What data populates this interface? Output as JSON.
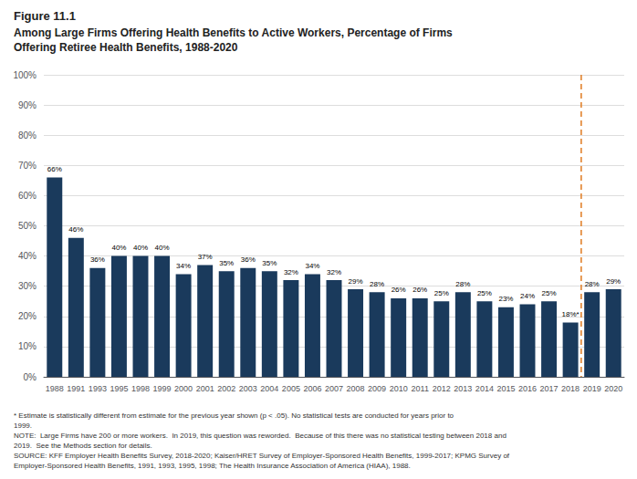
{
  "chart_data": {
    "type": "bar",
    "title": "Figure 11.1",
    "subtitle": [
      "Among Large Firms Offering Health Benefits to Active Workers, Percentage of Firms",
      "Offering Retiree Health Benefits, 1988-2020"
    ],
    "categories": [
      "1988",
      "1991",
      "1993",
      "1995",
      "1998",
      "1999",
      "2000",
      "2001",
      "2002",
      "2003",
      "2004",
      "2005",
      "2006",
      "2007",
      "2008",
      "2009",
      "2010",
      "2011",
      "2012",
      "2013",
      "2014",
      "2015",
      "2016",
      "2017",
      "2018",
      "2019",
      "2020"
    ],
    "values": [
      66,
      46,
      36,
      40,
      40,
      40,
      34,
      37,
      35,
      36,
      35,
      32,
      34,
      32,
      29,
      28,
      26,
      26,
      25,
      28,
      25,
      23,
      24,
      25,
      18,
      28,
      29
    ],
    "value_labels": [
      "66%",
      "46%",
      "36%",
      "40%",
      "40%",
      "40%",
      "34%",
      "37%",
      "35%",
      "36%",
      "35%",
      "32%",
      "34%",
      "32%",
      "29%",
      "28%",
      "26%",
      "26%",
      "25%",
      "28%",
      "25%",
      "23%",
      "24%",
      "25%",
      "18%*",
      "28%",
      "29%"
    ],
    "data_labels": true,
    "color": "#1a3a5c",
    "ylim": [
      0,
      100
    ],
    "yticks": [
      {
        "value": 0,
        "label": "0%"
      },
      {
        "value": 10,
        "label": "10%"
      },
      {
        "value": 20,
        "label": "20%"
      },
      {
        "value": 30,
        "label": "30%"
      },
      {
        "value": 40,
        "label": "40%"
      },
      {
        "value": 50,
        "label": "50%"
      },
      {
        "value": 60,
        "label": "60%"
      },
      {
        "value": 70,
        "label": "70%"
      },
      {
        "value": 80,
        "label": "80%"
      },
      {
        "value": 90,
        "label": "90%"
      },
      {
        "value": 100,
        "label": "100%"
      }
    ],
    "grid": true,
    "reference_line": {
      "after": "2018",
      "color": "#e07b20",
      "line_style": "dashed"
    },
    "notes": [
      "* Estimate is statistically different from estimate for the previous year shown (p < .05). No statistical tests are conducted for years prior to",
      "1999.",
      "NOTE:  Large Firms have 200 or more workers.  In 2019, this question was reworded.  Because of this there was no statistical testing between 2018 and",
      "2019.  See the Methods section for details.",
      "SOURCE: KFF Employer Health Benefits Survey, 2018-2020; Kaiser/HRET Survey of Employer-Sponsored Health Benefits, 1999-2017; KPMG Survey of",
      "Employer-Sponsored Health Benefits, 1991, 1993, 1995, 1998; The Health Insurance Association of America (HIAA), 1988."
    ]
  }
}
